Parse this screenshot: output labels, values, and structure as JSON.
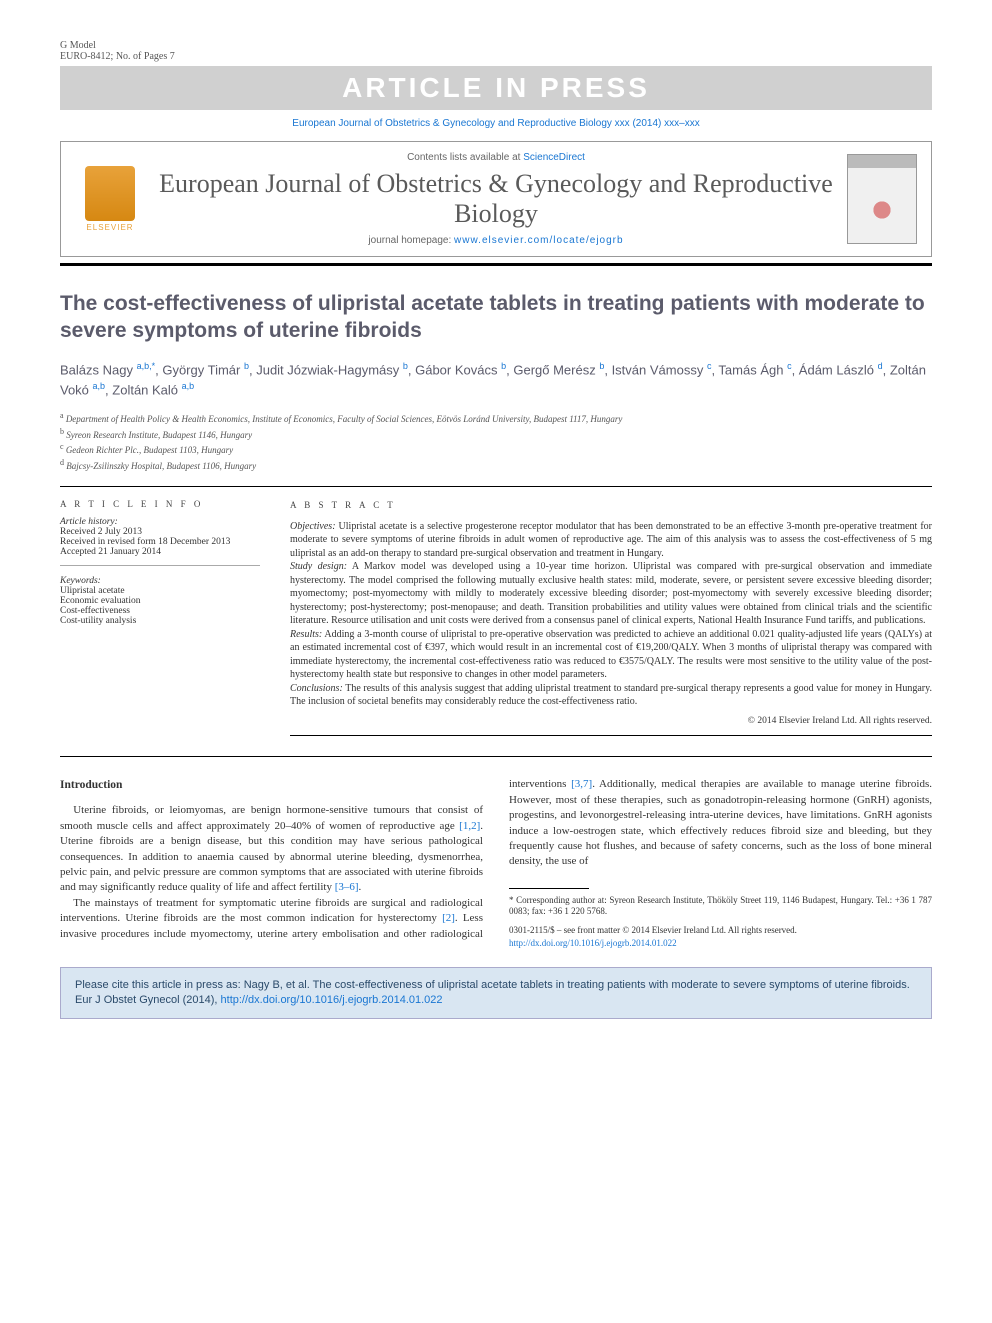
{
  "header": {
    "g_model": "G Model",
    "euro_id": "EURO-8412; No. of Pages 7",
    "press_banner": "ARTICLE IN PRESS",
    "citation_line": "European Journal of Obstetrics & Gynecology and Reproductive Biology xxx (2014) xxx–xxx"
  },
  "journal_box": {
    "elsevier_label": "ELSEVIER",
    "contents_prefix": "Contents lists available at ",
    "contents_link": "ScienceDirect",
    "journal_name": "European Journal of Obstetrics & Gynecology and Reproductive Biology",
    "homepage_prefix": "journal homepage: ",
    "homepage_url": "www.elsevier.com/locate/ejogrb"
  },
  "title": "The cost-effectiveness of ulipristal acetate tablets in treating patients with moderate to severe symptoms of uterine fibroids",
  "authors_html": "Balázs Nagy <span class='sup'>a,b,*</span>, György Timár <span class='sup'>b</span>, Judit Józwiak-Hagymásy <span class='sup'>b</span>, Gábor Kovács <span class='sup'>b</span>, Gergő Merész <span class='sup'>b</span>, István Vámossy <span class='sup'>c</span>, Tamás Ágh <span class='sup'>c</span>, Ádám László <span class='sup'>d</span>, Zoltán Vokó <span class='sup'>a,b</span>, Zoltán Kaló <span class='sup'>a,b</span>",
  "affiliations": [
    {
      "sup": "a",
      "text": "Department of Health Policy & Health Economics, Institute of Economics, Faculty of Social Sciences, Eötvös Loránd University, Budapest 1117, Hungary"
    },
    {
      "sup": "b",
      "text": "Syreon Research Institute, Budapest 1146, Hungary"
    },
    {
      "sup": "c",
      "text": "Gedeon Richter Plc., Budapest 1103, Hungary"
    },
    {
      "sup": "d",
      "text": "Bajcsy-Zsilinszky Hospital, Budapest 1106, Hungary"
    }
  ],
  "article_info": {
    "head": "A R T I C L E   I N F O",
    "history_label": "Article history:",
    "received": "Received 2 July 2013",
    "revised": "Received in revised form 18 December 2013",
    "accepted": "Accepted 21 January 2014",
    "keywords_label": "Keywords:",
    "keywords": [
      "Ulipristal acetate",
      "Economic evaluation",
      "Cost-effectiveness",
      "Cost-utility analysis"
    ]
  },
  "abstract": {
    "head": "A B S T R A C T",
    "objectives_label": "Objectives:",
    "objectives": " Ulipristal acetate is a selective progesterone receptor modulator that has been demonstrated to be an effective 3-month pre-operative treatment for moderate to severe symptoms of uterine fibroids in adult women of reproductive age. The aim of this analysis was to assess the cost-effectiveness of 5 mg ulipristal as an add-on therapy to standard pre-surgical observation and treatment in Hungary.",
    "design_label": "Study design:",
    "design": " A Markov model was developed using a 10-year time horizon. Ulipristal was compared with pre-surgical observation and immediate hysterectomy. The model comprised the following mutually exclusive health states: mild, moderate, severe, or persistent severe excessive bleeding disorder; myomectomy; post-myomectomy with mildly to moderately excessive bleeding disorder; post-myomectomy with severely excessive bleeding disorder; hysterectomy; post-hysterectomy; post-menopause; and death. Transition probabilities and utility values were obtained from clinical trials and the scientific literature. Resource utilisation and unit costs were derived from a consensus panel of clinical experts, National Health Insurance Fund tariffs, and publications.",
    "results_label": "Results:",
    "results": " Adding a 3-month course of ulipristal to pre-operative observation was predicted to achieve an additional 0.021 quality-adjusted life years (QALYs) at an estimated incremental cost of €397, which would result in an incremental cost of €19,200/QALY. When 3 months of ulipristal therapy was compared with immediate hysterectomy, the incremental cost-effectiveness ratio was reduced to €3575/QALY. The results were most sensitive to the utility value of the post-hysterectomy health state but responsive to changes in other model parameters.",
    "conclusions_label": "Conclusions:",
    "conclusions": " The results of this analysis suggest that adding ulipristal treatment to standard pre-surgical therapy represents a good value for money in Hungary. The inclusion of societal benefits may considerably reduce the cost-effectiveness ratio.",
    "copyright": "© 2014 Elsevier Ireland Ltd. All rights reserved."
  },
  "body": {
    "intro_head": "Introduction",
    "p1a": "Uterine fibroids, or leiomyomas, are benign hormone-sensitive tumours that consist of smooth muscle cells and affect approximately 20–40% of women of reproductive age ",
    "p1_ref1": "[1,2]",
    "p1b": ". Uterine fibroids are a benign disease, but this condition may have serious pathological consequences. In addition to anaemia caused by abnormal uterine bleeding, dysmenorrhea, pelvic pain, and pelvic pressure are common symptoms that are associated with uterine fibroids and may significantly reduce quality of life and affect fertility ",
    "p1_ref2": "[3–6]",
    "p1c": ".",
    "p2a": "The mainstays of treatment for symptomatic uterine fibroids are surgical and radiological interventions. Uterine fibroids are the most common indication for hysterectomy ",
    "p2_ref1": "[2]",
    "p2b": ". Less invasive procedures include myomectomy, uterine artery embolisation and other radiological interventions ",
    "p2_ref2": "[3,7]",
    "p2c": ". Additionally, medical therapies are available to manage uterine fibroids. However, most of these therapies, such as gonadotropin-releasing hormone (GnRH) agonists, progestins, and levonorgestrel-releasing intra-uterine devices, have limitations. GnRH agonists induce a low-oestrogen state, which effectively reduces fibroid size and bleeding, but they frequently cause hot flushes, and because of safety concerns, such as the loss of bone mineral density, the use of"
  },
  "footnote": {
    "corr": "* Corresponding author at: Syreon Research Institute, Thököly Street 119, 1146 Budapest, Hungary. Tel.: +36 1 787 0083; fax: +36 1 220 5768.",
    "issn": "0301-2115/$ – see front matter © 2014 Elsevier Ireland Ltd. All rights reserved.",
    "doi": "http://dx.doi.org/10.1016/j.ejogrb.2014.01.022"
  },
  "cite_box": {
    "text": "Please cite this article in press as: Nagy B, et al. The cost-effectiveness of ulipristal acetate tablets in treating patients with moderate to severe symptoms of uterine fibroids. Eur J Obstet Gynecol (2014), ",
    "link": "http://dx.doi.org/10.1016/j.ejogrb.2014.01.022"
  },
  "colors": {
    "link": "#1976d2",
    "banner_bg": "#d0d0d0",
    "title_color": "#5b5b6b",
    "citebox_bg": "#d9e6f2"
  }
}
